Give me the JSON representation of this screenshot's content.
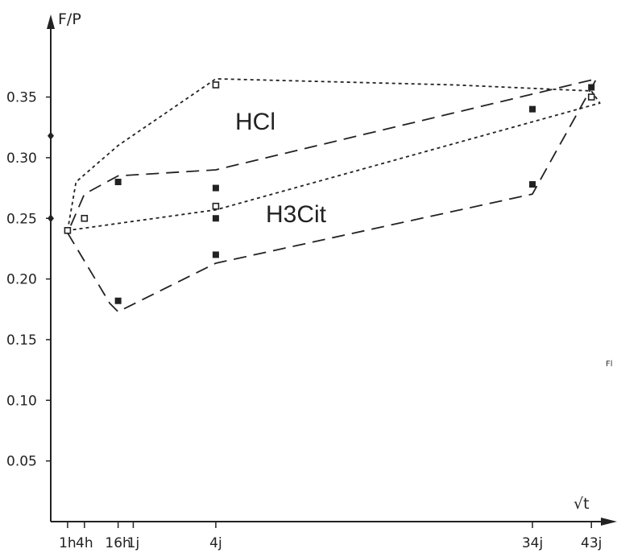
{
  "chart_data": {
    "type": "scatter",
    "title": "",
    "ylabel": "F/P",
    "xlabel": "√t",
    "ylim": [
      0,
      0.4
    ],
    "y_ticks": [
      0.05,
      0.1,
      0.15,
      0.2,
      0.25,
      0.3,
      0.35
    ],
    "y_tick_labels": [
      "0.05",
      "0.10",
      "0.15",
      "0.20",
      "0.25",
      "0.30",
      "0.35"
    ],
    "x_ticks": [
      {
        "label": "1h",
        "value": 1
      },
      {
        "label": "4h",
        "value": 2
      },
      {
        "label": "16h",
        "value": 4
      },
      {
        "label": "1j",
        "value": 4.9
      },
      {
        "label": "4j",
        "value": 9.8
      },
      {
        "label": "34j",
        "value": 28.6
      },
      {
        "label": "43j",
        "value": 32.1
      }
    ],
    "annotations": [
      "HCl",
      "H3Cit",
      "Fl"
    ],
    "grid": false,
    "series": [
      {
        "marker": "open-square",
        "color": "#222222",
        "points": [
          {
            "x": 1,
            "y": 0.24
          },
          {
            "x": 2,
            "y": 0.25
          },
          {
            "x": 9.8,
            "y": 0.26
          },
          {
            "x": 9.8,
            "y": 0.36
          },
          {
            "x": 32.1,
            "y": 0.35
          }
        ]
      },
      {
        "marker": "filled-square",
        "color": "#222222",
        "points": [
          {
            "x": 4,
            "y": 0.28
          },
          {
            "x": 4,
            "y": 0.182
          },
          {
            "x": 9.8,
            "y": 0.275
          },
          {
            "x": 9.8,
            "y": 0.25
          },
          {
            "x": 9.8,
            "y": 0.22
          },
          {
            "x": 28.6,
            "y": 0.34
          },
          {
            "x": 28.6,
            "y": 0.278
          },
          {
            "x": 32.1,
            "y": 0.358
          }
        ]
      }
    ],
    "envelopes": [
      {
        "region": "HCl",
        "style": "dotted",
        "points": [
          [
            1,
            0.24
          ],
          [
            1.5,
            0.28
          ],
          [
            4,
            0.31
          ],
          [
            9.8,
            0.365
          ],
          [
            24,
            0.36
          ],
          [
            32.1,
            0.355
          ],
          [
            32.6,
            0.345
          ],
          [
            9.8,
            0.257
          ],
          [
            1,
            0.24
          ]
        ]
      },
      {
        "region": "H3Cit",
        "style": "dashed",
        "points": [
          [
            1,
            0.238
          ],
          [
            3.5,
            0.18
          ],
          [
            4,
            0.173
          ],
          [
            9.8,
            0.213
          ],
          [
            28.6,
            0.27
          ],
          [
            32.4,
            0.365
          ],
          [
            9.8,
            0.29
          ],
          [
            4,
            0.285
          ],
          [
            2,
            0.27
          ],
          [
            1,
            0.238
          ]
        ]
      }
    ],
    "axis_marks": [
      0.25,
      0.318
    ]
  }
}
